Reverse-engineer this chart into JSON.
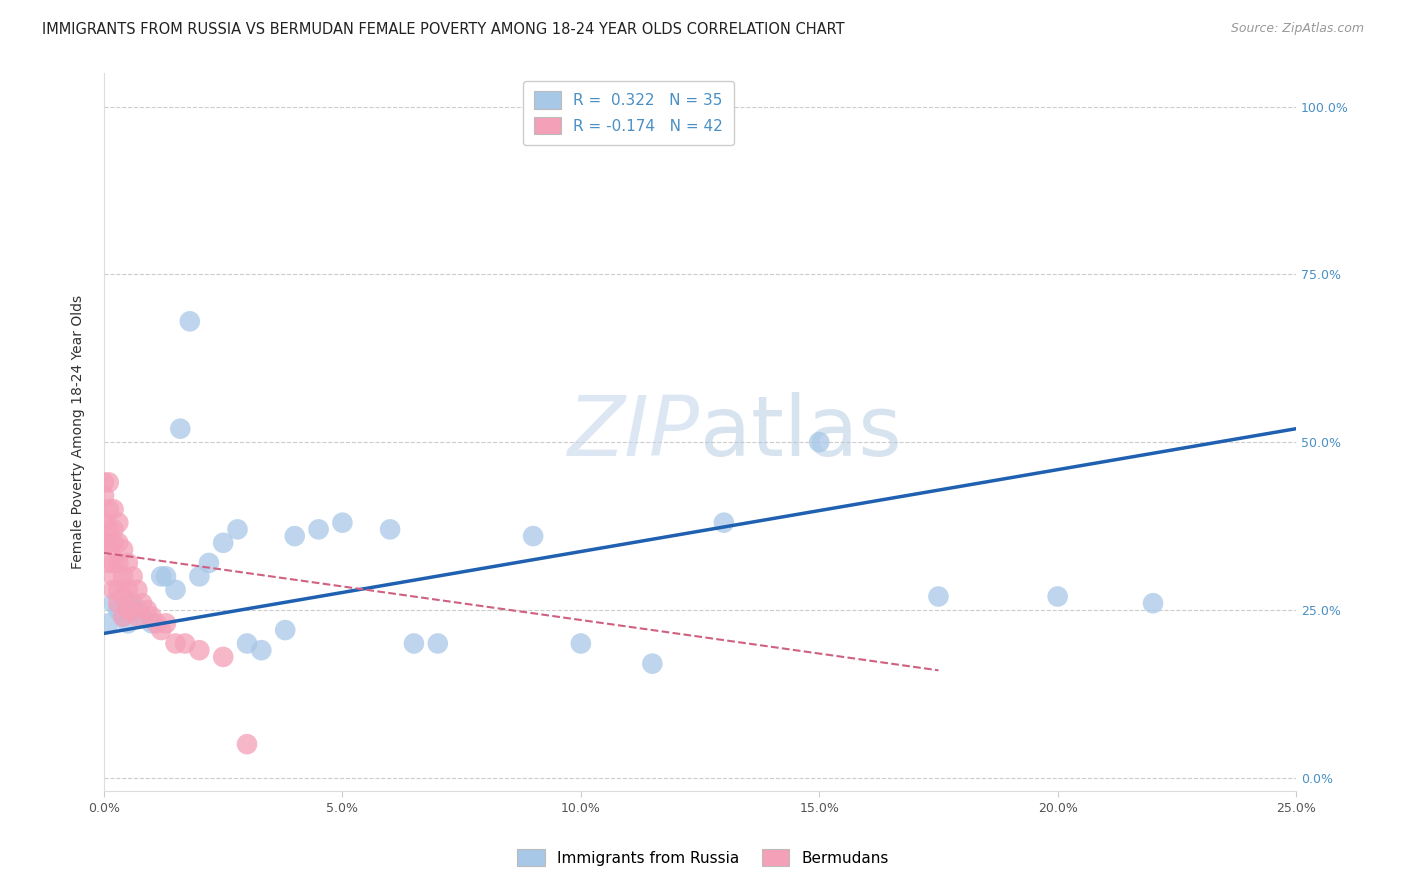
{
  "title": "IMMIGRANTS FROM RUSSIA VS BERMUDAN FEMALE POVERTY AMONG 18-24 YEAR OLDS CORRELATION CHART",
  "source": "Source: ZipAtlas.com",
  "ylabel": "Female Poverty Among 18-24 Year Olds",
  "xlim": [
    0.0,
    0.25
  ],
  "ylim": [
    -0.02,
    1.05
  ],
  "series1_color": "#a8c8e8",
  "series2_color": "#f4a0b8",
  "trend1_color": "#2060b0",
  "trend2_color": "#d06080",
  "watermark_color": "#d8e8f4",
  "right_tick_color": "#4a90c4",
  "title_color": "#222222",
  "source_color": "#999999",
  "legend1_r_color": "#4a90c4",
  "legend1_n_color": "#222222",
  "legend2_r_color": "#d06080",
  "legend2_n_color": "#222222",
  "blue_x": [
    0.001,
    0.002,
    0.003,
    0.004,
    0.005,
    0.006,
    0.007,
    0.008,
    0.01,
    0.012,
    0.013,
    0.015,
    0.016,
    0.018,
    0.02,
    0.022,
    0.025,
    0.028,
    0.03,
    0.033,
    0.038,
    0.04,
    0.045,
    0.05,
    0.06,
    0.065,
    0.07,
    0.09,
    0.1,
    0.115,
    0.13,
    0.15,
    0.175,
    0.2,
    0.22
  ],
  "blue_y": [
    0.23,
    0.26,
    0.25,
    0.24,
    0.23,
    0.26,
    0.25,
    0.24,
    0.23,
    0.3,
    0.3,
    0.28,
    0.52,
    0.68,
    0.3,
    0.32,
    0.35,
    0.37,
    0.2,
    0.19,
    0.22,
    0.36,
    0.37,
    0.38,
    0.37,
    0.2,
    0.2,
    0.36,
    0.2,
    0.17,
    0.38,
    0.5,
    0.27,
    0.27,
    0.26
  ],
  "pink_x": [
    0.0,
    0.0,
    0.0,
    0.0,
    0.001,
    0.001,
    0.001,
    0.001,
    0.001,
    0.002,
    0.002,
    0.002,
    0.002,
    0.002,
    0.002,
    0.003,
    0.003,
    0.003,
    0.003,
    0.003,
    0.004,
    0.004,
    0.004,
    0.004,
    0.005,
    0.005,
    0.005,
    0.006,
    0.006,
    0.007,
    0.007,
    0.008,
    0.009,
    0.01,
    0.011,
    0.012,
    0.013,
    0.015,
    0.017,
    0.02,
    0.025,
    0.03
  ],
  "pink_y": [
    0.42,
    0.44,
    0.38,
    0.35,
    0.44,
    0.4,
    0.37,
    0.35,
    0.32,
    0.4,
    0.37,
    0.35,
    0.32,
    0.3,
    0.28,
    0.38,
    0.35,
    0.32,
    0.28,
    0.26,
    0.34,
    0.3,
    0.27,
    0.24,
    0.32,
    0.28,
    0.25,
    0.3,
    0.25,
    0.28,
    0.24,
    0.26,
    0.25,
    0.24,
    0.23,
    0.22,
    0.23,
    0.2,
    0.2,
    0.19,
    0.18,
    0.05
  ],
  "trend1_x0": 0.0,
  "trend1_x1": 0.25,
  "trend1_y0": 0.215,
  "trend1_y1": 0.52,
  "trend2_x0": 0.0,
  "trend2_x1": 0.175,
  "trend2_y0": 0.335,
  "trend2_y1": 0.16
}
